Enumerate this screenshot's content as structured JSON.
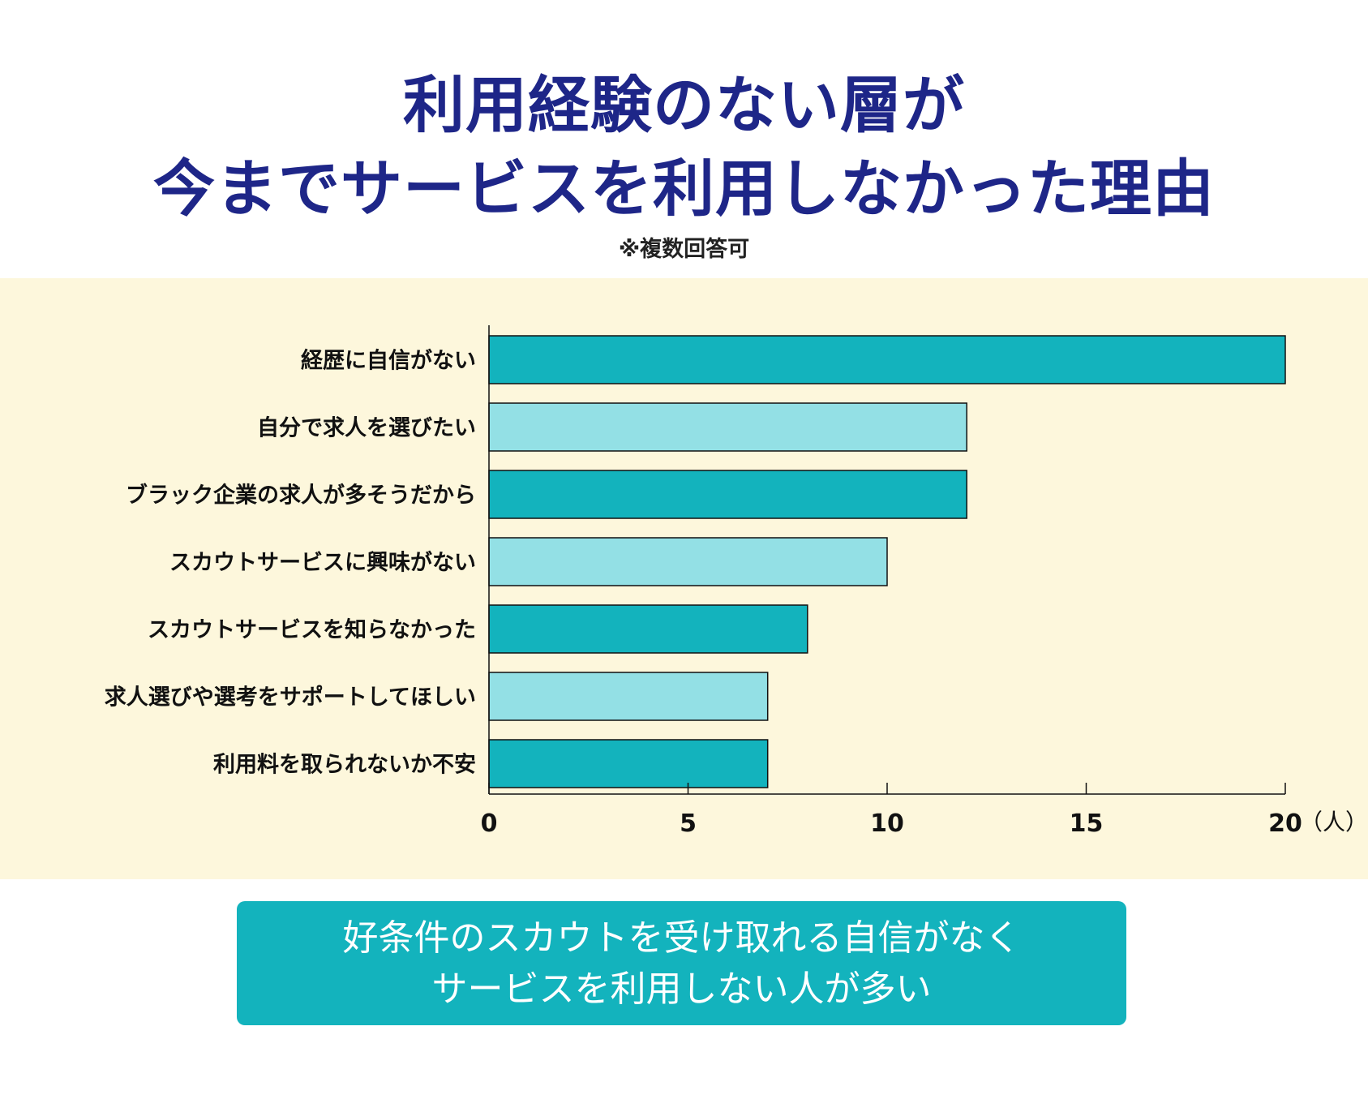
{
  "title": {
    "line1": "利用経験のない層が",
    "line2": "今までサービスを利用しなかった理由"
  },
  "note": "※複数回答可",
  "chart_data": {
    "type": "bar",
    "orientation": "horizontal",
    "categories": [
      "経歴に自信がない",
      "自分で求人を選びたい",
      "ブラック企業の求人が多そうだから",
      "スカウトサービスに興味がない",
      "スカウトサービスを知らなかった",
      "求人選びや選考をサポートしてほしい",
      "利用料を取られないか不安"
    ],
    "values": [
      20,
      12,
      12,
      10,
      8,
      7,
      7
    ],
    "xlim": [
      0,
      20
    ],
    "x_ticks": [
      "0",
      "5",
      "10",
      "15",
      "20"
    ],
    "x_unit": "（人）",
    "grid": false,
    "colors": {
      "dark": "#13b3bd",
      "light": "#93e0e5",
      "panel": "#fdf7dc",
      "title": "#1e2688"
    }
  },
  "summary": {
    "line1": "好条件のスカウトを受け取れる自信がなく",
    "line2": "サービスを利用しない人が多い"
  }
}
